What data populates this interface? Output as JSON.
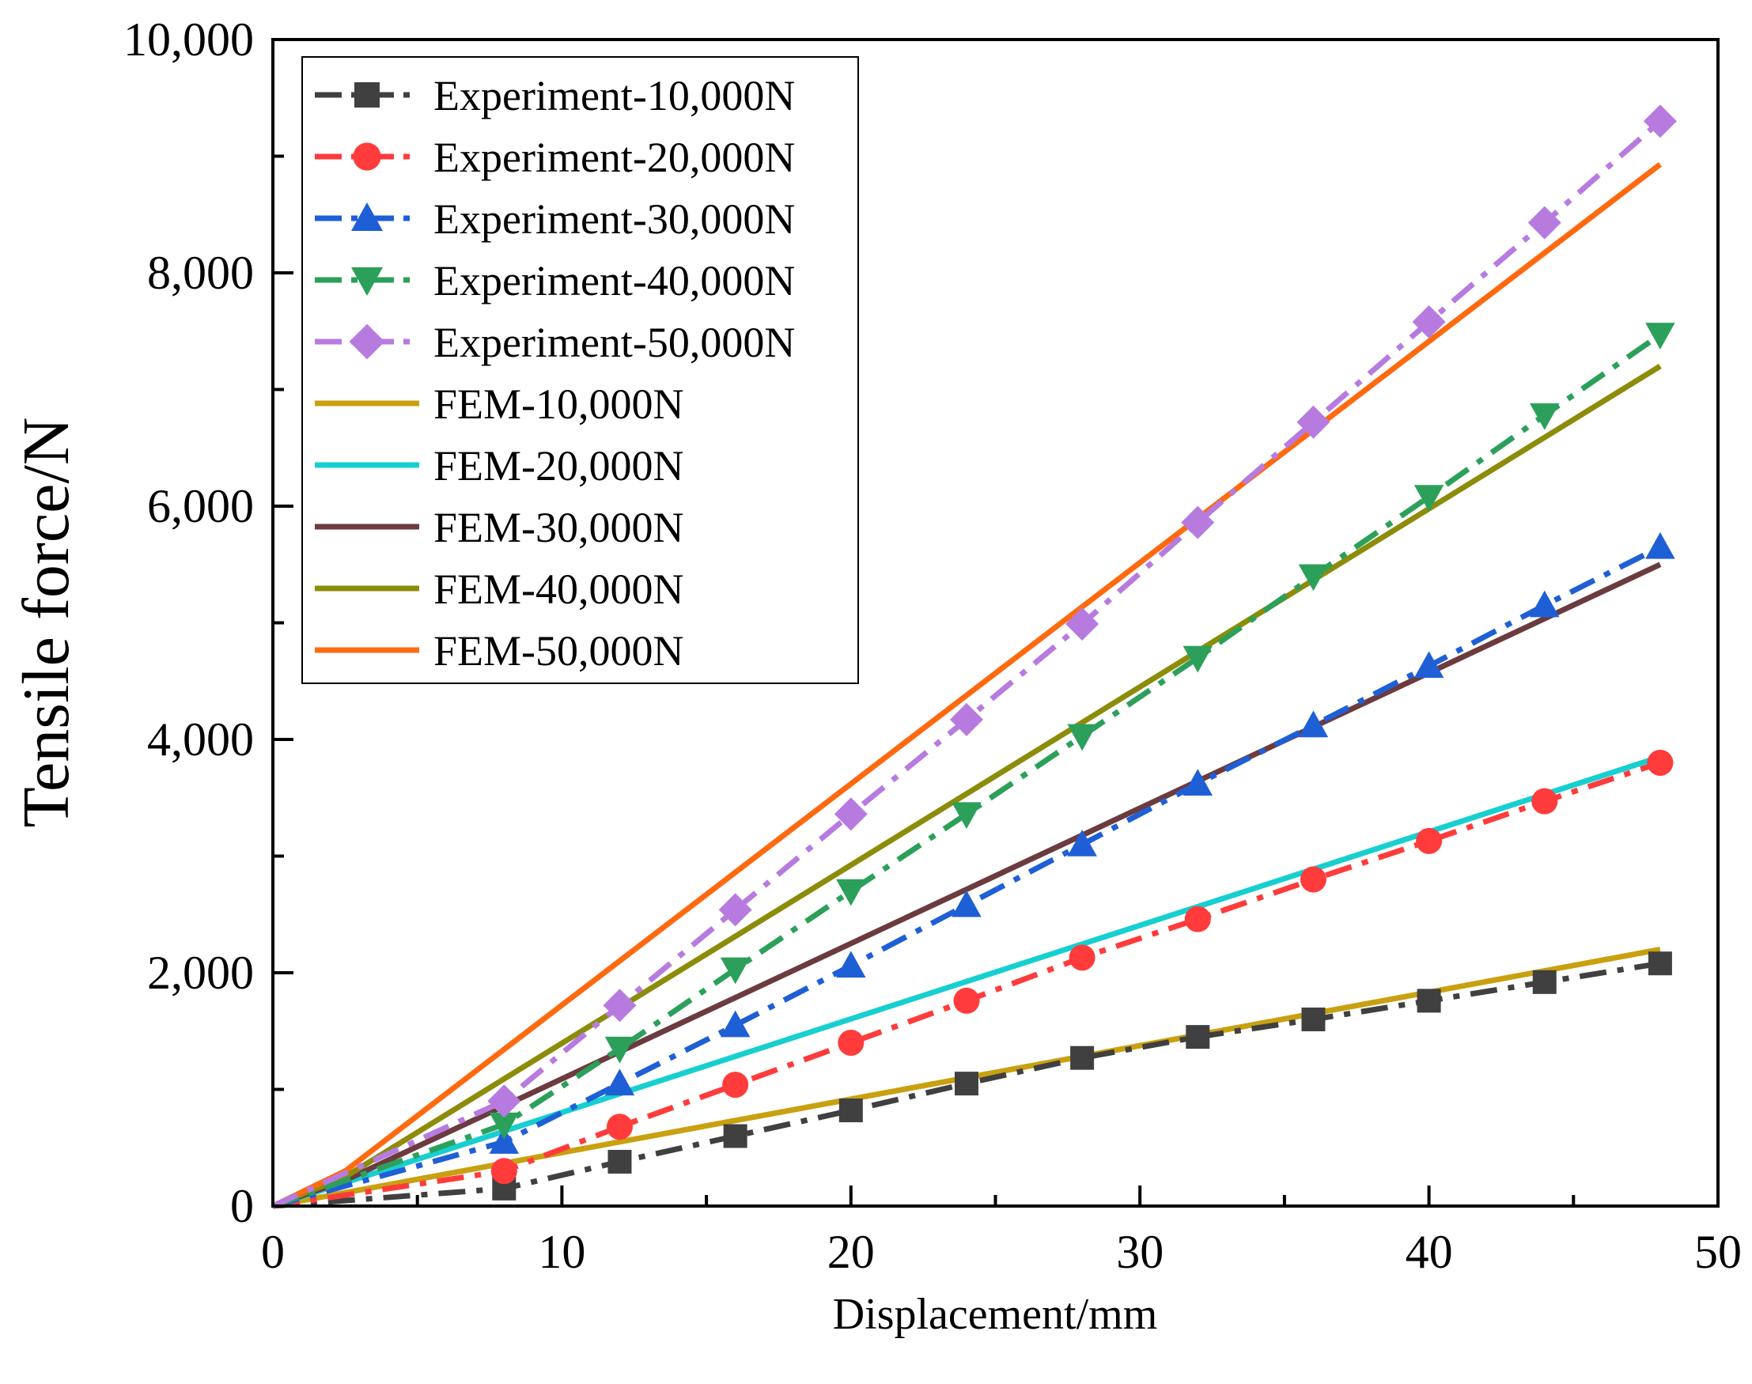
{
  "chart_data": {
    "type": "line",
    "title": "",
    "xlabel": "Displacement/mm",
    "ylabel": "Tensile force/N",
    "xlim": [
      0,
      50
    ],
    "ylim": [
      0,
      10000
    ],
    "x_ticks": [
      0,
      10,
      20,
      30,
      40,
      50
    ],
    "x_tick_labels": [
      "0",
      "10",
      "20",
      "30",
      "40",
      "50"
    ],
    "x_minor_ticks": [
      5,
      15,
      25,
      35,
      45
    ],
    "y_ticks": [
      0,
      2000,
      4000,
      6000,
      8000,
      10000
    ],
    "y_tick_labels": [
      "0",
      "2,000",
      "4,000",
      "6,000",
      "8,000",
      "10,000"
    ],
    "y_minor_ticks": [
      1000,
      3000,
      5000,
      7000,
      9000
    ],
    "grid": false,
    "legend_position": "top-left",
    "series": [
      {
        "name": "Experiment-10,000N",
        "color": "#404040",
        "marker": "square",
        "dash": "dash-dot",
        "x": [
          8,
          12,
          16,
          20,
          24,
          28,
          32,
          36,
          40,
          44,
          48
        ],
        "y": [
          150,
          380,
          600,
          820,
          1050,
          1270,
          1450,
          1600,
          1760,
          1920,
          2080
        ]
      },
      {
        "name": "Experiment-20,000N",
        "color": "#ff3b3b",
        "marker": "circle",
        "dash": "dash-dot",
        "x": [
          8,
          12,
          16,
          20,
          24,
          28,
          32,
          36,
          40,
          44,
          48
        ],
        "y": [
          300,
          680,
          1040,
          1400,
          1760,
          2130,
          2460,
          2800,
          3130,
          3470,
          3800
        ]
      },
      {
        "name": "Experiment-30,000N",
        "color": "#1f5fd6",
        "marker": "triangle-up",
        "dash": "dash-dot",
        "x": [
          8,
          12,
          16,
          20,
          24,
          28,
          32,
          36,
          40,
          44,
          48
        ],
        "y": [
          550,
          1050,
          1550,
          2060,
          2580,
          3100,
          3620,
          4120,
          4630,
          5150,
          5650
        ]
      },
      {
        "name": "Experiment-40,000N",
        "color": "#2ca05a",
        "marker": "triangle-down",
        "dash": "dash-dot",
        "x": [
          8,
          12,
          16,
          20,
          24,
          28,
          32,
          36,
          40,
          44,
          48
        ],
        "y": [
          700,
          1350,
          2030,
          2700,
          3360,
          4030,
          4700,
          5400,
          6080,
          6780,
          7470
        ]
      },
      {
        "name": "Experiment-50,000N",
        "color": "#b77be0",
        "marker": "diamond",
        "dash": "dash-dot",
        "x": [
          8,
          12,
          16,
          20,
          24,
          28,
          32,
          36,
          40,
          44,
          48
        ],
        "y": [
          900,
          1720,
          2540,
          3360,
          4170,
          4990,
          5860,
          6720,
          7580,
          8430,
          9300
        ]
      },
      {
        "name": "FEM-10,000N",
        "color": "#c9a010",
        "marker": "none",
        "dash": "solid",
        "x": [
          0,
          48
        ],
        "y": [
          0,
          2200
        ]
      },
      {
        "name": "FEM-20,000N",
        "color": "#17cfd0",
        "marker": "none",
        "dash": "solid",
        "x": [
          0,
          48
        ],
        "y": [
          0,
          3850
        ]
      },
      {
        "name": "FEM-30,000N",
        "color": "#6b3b3f",
        "marker": "none",
        "dash": "solid",
        "x": [
          0,
          2.5,
          48
        ],
        "y": [
          0,
          220,
          5500
        ]
      },
      {
        "name": "FEM-40,000N",
        "color": "#8c8c0a",
        "marker": "none",
        "dash": "solid",
        "x": [
          0,
          2.5,
          48
        ],
        "y": [
          0,
          250,
          7200
        ]
      },
      {
        "name": "FEM-50,000N",
        "color": "#ff6a10",
        "marker": "none",
        "dash": "solid",
        "x": [
          0,
          2.5,
          48
        ],
        "y": [
          0,
          300,
          8930
        ]
      }
    ]
  }
}
